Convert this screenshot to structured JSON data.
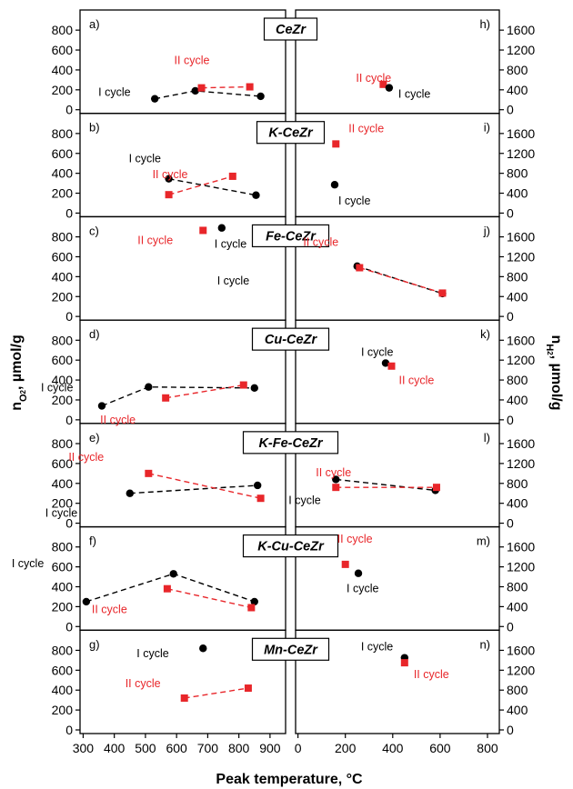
{
  "chart_data": {
    "type": "scatter",
    "xlabel": "Peak temperature, °C",
    "ylabel_left": "n_{O2}, µmol/g",
    "ylabel_right": "n_{H2}, µmol/g",
    "x_left": {
      "range": [
        290,
        950
      ],
      "ticks": [
        "300",
        "400",
        "500",
        "600",
        "700",
        "800",
        "900"
      ]
    },
    "x_right": {
      "range": [
        -10,
        850
      ],
      "ticks": [
        "0",
        "200",
        "400",
        "600",
        "800"
      ]
    },
    "y_left": {
      "range": [
        0,
        900
      ],
      "ticks": [
        "0",
        "200",
        "400",
        "600",
        "800"
      ]
    },
    "y_right": {
      "range": [
        0,
        1800
      ],
      "ticks": [
        "0",
        "400",
        "800",
        "1200",
        "1600"
      ]
    },
    "colors": {
      "I cycle": "#000000",
      "II cycle": "#e8262a"
    },
    "legend": [
      "I cycle",
      "II cycle"
    ],
    "panels": [
      {
        "sample": "CeZr",
        "left": {
          "tag": "a)",
          "series": [
            {
              "name": "I cycle",
              "points": [
                [
                  530,
                  110
                ],
                [
                  660,
                  190
                ],
                [
                  870,
                  135
                ]
              ]
            },
            {
              "name": "II cycle",
              "points": [
                [
                  680,
                  220
                ],
                [
                  835,
                  230
                ]
              ]
            }
          ],
          "labels": [
            {
              "text": "I cycle",
              "series": "I cycle"
            },
            {
              "text": "II cycle",
              "series": "II cycle"
            }
          ]
        },
        "right": {
          "tag": "h)",
          "series": [
            {
              "name": "II cycle",
              "points": [
                [
                  360,
                  510
                ]
              ]
            },
            {
              "name": "I cycle",
              "points": [
                [
                  385,
                  440
                ]
              ]
            }
          ],
          "labels": [
            {
              "text": "II cycle",
              "series": "II cycle"
            },
            {
              "text": "I cycle",
              "series": "I cycle"
            }
          ]
        }
      },
      {
        "sample": "K-CeZr",
        "left": {
          "tag": "b)",
          "series": [
            {
              "name": "I cycle",
              "points": [
                [
                  575,
                  345
                ],
                [
                  855,
                  180
                ]
              ]
            },
            {
              "name": "II cycle",
              "points": [
                [
                  575,
                  185
                ],
                [
                  780,
                  370
                ]
              ]
            }
          ],
          "labels": [
            {
              "text": "I cycle",
              "series": "I cycle"
            },
            {
              "text": "II cycle",
              "series": "II cycle"
            }
          ]
        },
        "right": {
          "tag": "i)",
          "series": [
            {
              "name": "II cycle",
              "points": [
                [
                  160,
                  1390
                ]
              ]
            },
            {
              "name": "I cycle",
              "points": [
                [
                  155,
                  570
                ]
              ]
            }
          ],
          "labels": [
            {
              "text": "II cycle",
              "series": "II cycle"
            },
            {
              "text": "I cycle",
              "series": "I cycle"
            }
          ]
        }
      },
      {
        "sample": "Fe-CeZr",
        "left": {
          "tag": "c)",
          "series": [
            {
              "name": "II cycle",
              "points": [
                [
                  685,
                  865
                ]
              ]
            },
            {
              "name": "I cycle",
              "points": [
                [
                  745,
                  890
                ]
              ]
            }
          ],
          "labels": [
            {
              "text": "II cycle",
              "series": "II cycle"
            },
            {
              "text": "I cycle",
              "series": "I cycle"
            }
          ]
        },
        "right": {
          "tag": "j)",
          "series": [
            {
              "name": "I cycle",
              "points": [
                [
                  250,
                  1010
                ],
                [
                  610,
                  460
                ]
              ]
            },
            {
              "name": "II cycle",
              "points": [
                [
                  260,
                  980
                ],
                [
                  610,
                  470
                ]
              ]
            }
          ],
          "labels": [
            {
              "text": "II cycle",
              "series": "II cycle"
            },
            {
              "text": "I cycle",
              "series": "I cycle"
            }
          ]
        }
      },
      {
        "sample": "Cu-CeZr",
        "left": {
          "tag": "d)",
          "series": [
            {
              "name": "I cycle",
              "points": [
                [
                  360,
                  140
                ],
                [
                  510,
                  330
                ],
                [
                  850,
                  320
                ]
              ]
            },
            {
              "name": "II cycle",
              "points": [
                [
                  565,
                  220
                ],
                [
                  815,
                  350
                ]
              ]
            }
          ],
          "labels": [
            {
              "text": "I cycle",
              "series": "I cycle"
            },
            {
              "text": "II cycle",
              "series": "II cycle"
            }
          ]
        },
        "right": {
          "tag": "k)",
          "series": [
            {
              "name": "I cycle",
              "points": [
                [
                  370,
                  1140
                ]
              ]
            },
            {
              "name": "II cycle",
              "points": [
                [
                  395,
                  1080
                ]
              ]
            }
          ],
          "labels": [
            {
              "text": "I cycle",
              "series": "I cycle"
            },
            {
              "text": "II cycle",
              "series": "II cycle"
            }
          ]
        }
      },
      {
        "sample": "K-Fe-CeZr",
        "left": {
          "tag": "e)",
          "series": [
            {
              "name": "I cycle",
              "points": [
                [
                  450,
                  300
                ],
                [
                  860,
                  380
                ]
              ]
            },
            {
              "name": "II cycle",
              "points": [
                [
                  510,
                  500
                ],
                [
                  870,
                  250
                ]
              ]
            }
          ],
          "labels": [
            {
              "text": "II cycle",
              "series": "II cycle"
            },
            {
              "text": "I cycle",
              "series": "I cycle"
            }
          ]
        },
        "right": {
          "tag": "l)",
          "series": [
            {
              "name": "I cycle",
              "points": [
                [
                  160,
                  880
                ],
                [
                  580,
                  660
                ]
              ]
            },
            {
              "name": "II cycle",
              "points": [
                [
                  160,
                  720
                ],
                [
                  585,
                  720
                ]
              ]
            }
          ],
          "labels": [
            {
              "text": "II cycle",
              "series": "II cycle"
            },
            {
              "text": "I cycle",
              "series": "I cycle"
            }
          ]
        }
      },
      {
        "sample": "K-Cu-CeZr",
        "left": {
          "tag": "f)",
          "series": [
            {
              "name": "I cycle",
              "points": [
                [
                  310,
                  250
                ],
                [
                  590,
                  530
                ],
                [
                  850,
                  250
                ]
              ]
            },
            {
              "name": "II cycle",
              "points": [
                [
                  570,
                  380
                ],
                [
                  840,
                  190
                ]
              ]
            }
          ],
          "labels": [
            {
              "text": "I cycle",
              "series": "I cycle"
            },
            {
              "text": "II cycle",
              "series": "II cycle"
            }
          ]
        },
        "right": {
          "tag": "m)",
          "series": [
            {
              "name": "II cycle",
              "points": [
                [
                  200,
                  1250
                ]
              ]
            },
            {
              "name": "I cycle",
              "points": [
                [
                  255,
                  1070
                ]
              ]
            }
          ],
          "labels": [
            {
              "text": "II cycle",
              "series": "II cycle"
            },
            {
              "text": "I cycle",
              "series": "I cycle"
            }
          ]
        }
      },
      {
        "sample": "Mn-CeZr",
        "left": {
          "tag": "g)",
          "series": [
            {
              "name": "I cycle",
              "points": [
                [
                  685,
                  820
                ]
              ]
            },
            {
              "name": "II cycle",
              "points": [
                [
                  625,
                  320
                ],
                [
                  830,
                  420
                ]
              ]
            }
          ],
          "labels": [
            {
              "text": "I cycle",
              "series": "I cycle"
            },
            {
              "text": "II cycle",
              "series": "II cycle"
            }
          ]
        },
        "right": {
          "tag": "n)",
          "series": [
            {
              "name": "I cycle",
              "points": [
                [
                  450,
                  1450
                ]
              ]
            },
            {
              "name": "II cycle",
              "points": [
                [
                  450,
                  1350
                ]
              ]
            }
          ],
          "labels": [
            {
              "text": "I cycle",
              "series": "I cycle"
            },
            {
              "text": "II cycle",
              "series": "II cycle"
            }
          ]
        }
      }
    ]
  }
}
